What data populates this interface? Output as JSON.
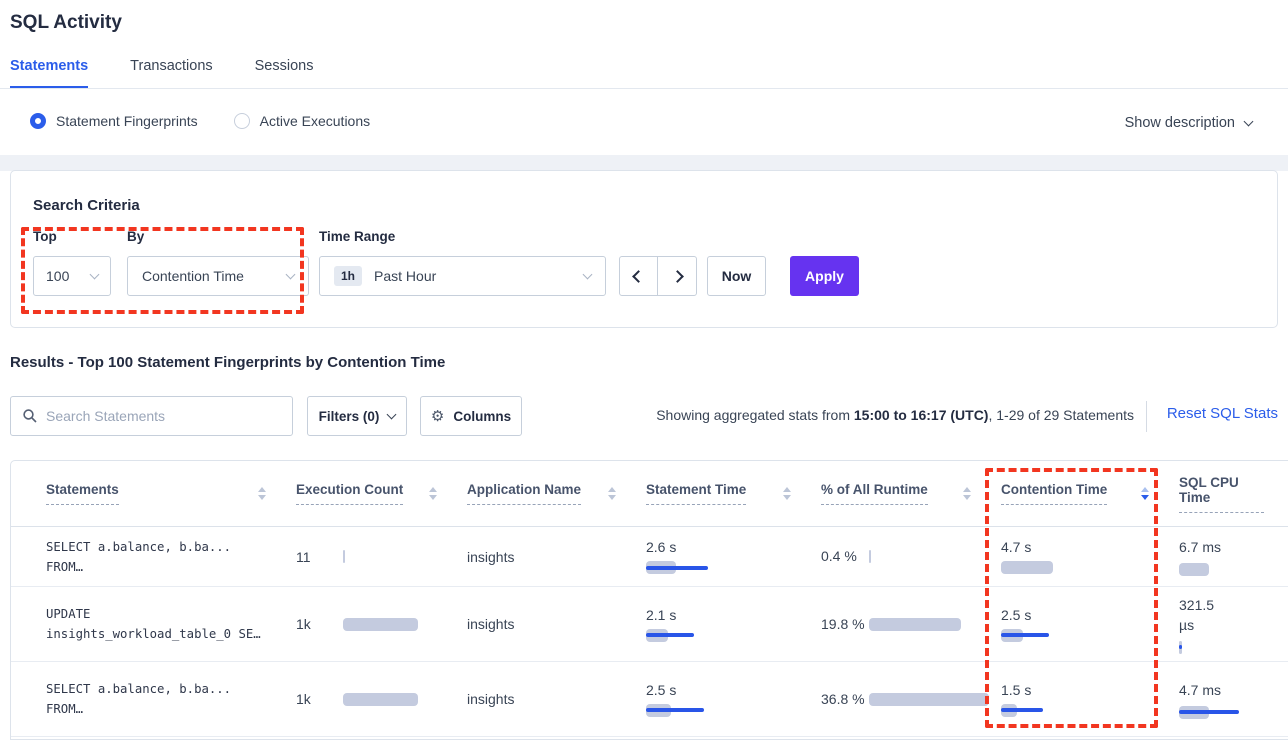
{
  "page": {
    "title": "SQL Activity"
  },
  "tabs": [
    {
      "label": "Statements",
      "active": true
    },
    {
      "label": "Transactions",
      "active": false
    },
    {
      "label": "Sessions",
      "active": false
    }
  ],
  "view_toggle": {
    "options": [
      {
        "label": "Statement Fingerprints",
        "selected": true
      },
      {
        "label": "Active Executions",
        "selected": false
      }
    ],
    "show_description_label": "Show description"
  },
  "search_criteria": {
    "title": "Search Criteria",
    "top": {
      "label": "Top",
      "value": "100"
    },
    "by": {
      "label": "By",
      "value": "Contention Time"
    },
    "time_range": {
      "label": "Time Range",
      "badge": "1h",
      "value": "Past Hour"
    },
    "now_label": "Now",
    "apply_label": "Apply"
  },
  "results": {
    "heading": "Results - Top 100 Statement Fingerprints by Contention Time",
    "search_placeholder": "Search Statements",
    "filters_label": "Filters (0)",
    "columns_label": "Columns",
    "stats": {
      "prefix": "Showing aggregated stats from ",
      "range": "15:00 to 16:17 (UTC)",
      "suffix": ", 1-29 of 29 Statements"
    },
    "reset_label": "Reset SQL Stats"
  },
  "table": {
    "columns": [
      "Statements",
      "Execution Count",
      "Application Name",
      "Statement Time",
      "% of All Runtime",
      "Contention Time",
      "SQL CPU Time"
    ],
    "sort": {
      "column": "Contention Time",
      "direction": "desc"
    },
    "rows": [
      {
        "statement_line1": "SELECT a.balance, b.ba...",
        "statement_line2": "FROM…",
        "execution_count": "11",
        "application_name": "insights",
        "statement_time": "2.6 s",
        "pct_runtime": "0.4 %",
        "contention_time": "4.7 s",
        "sql_cpu_time": "6.7 ms",
        "bars": {
          "exec": {
            "gray": 2
          },
          "stmt": {
            "gray": 30,
            "blue": 62
          },
          "pct": {
            "gray": 2
          },
          "cont": {
            "gray": 52
          },
          "cpu": {
            "gray": 30
          }
        }
      },
      {
        "statement_line1": "UPDATE",
        "statement_line2": "insights_workload_table_0 SE…",
        "execution_count": "1k",
        "application_name": "insights",
        "statement_time": "2.1 s",
        "pct_runtime": "19.8 %",
        "contention_time": "2.5 s",
        "sql_cpu_time": "321.5 µs",
        "bars": {
          "exec": {
            "gray": 75
          },
          "stmt": {
            "gray": 22,
            "blue": 48
          },
          "pct": {
            "gray": 92
          },
          "cont": {
            "gray": 22,
            "blue": 48
          },
          "cpu": {
            "gray": 3,
            "blue": 3
          }
        }
      },
      {
        "statement_line1": "SELECT a.balance, b.ba...",
        "statement_line2": "FROM…",
        "execution_count": "1k",
        "application_name": "insights",
        "statement_time": "2.5 s",
        "pct_runtime": "36.8 %",
        "contention_time": "1.5 s",
        "sql_cpu_time": "4.7 ms",
        "bars": {
          "exec": {
            "gray": 75
          },
          "stmt": {
            "gray": 25,
            "blue": 58
          },
          "pct": {
            "gray": 120
          },
          "cont": {
            "gray": 16,
            "blue": 42
          },
          "cpu": {
            "gray": 30,
            "blue": 60
          }
        }
      }
    ]
  },
  "colors": {
    "accent_blue": "#2b5dea",
    "apply_purple": "#6633f0",
    "annotation_red": "#f23620",
    "bar_gray": "#c4cbdf",
    "bar_blue": "#2955e8"
  }
}
